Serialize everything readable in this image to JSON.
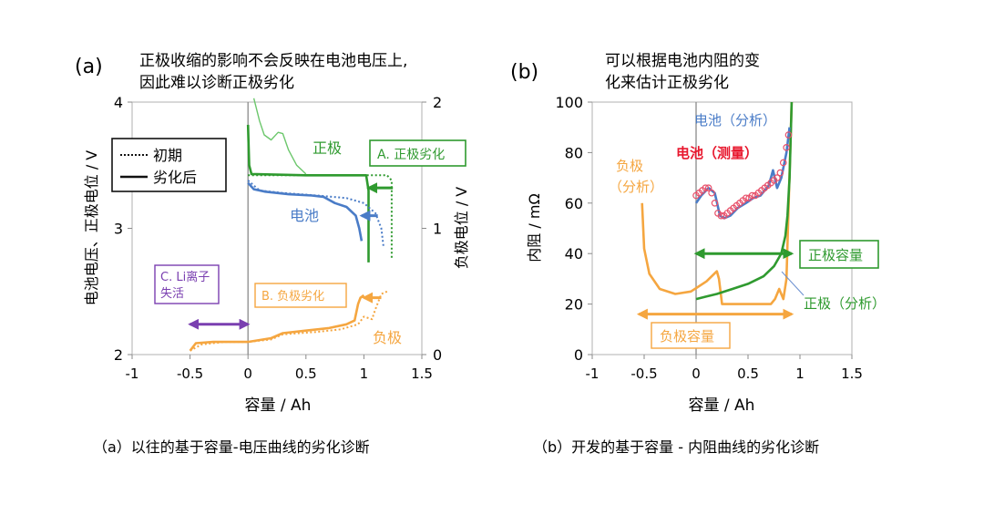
{
  "colors": {
    "cell": "#4a7cc7",
    "cell_measured": "#e8506a",
    "positive": "#2f9a2f",
    "positive_light": "#6cc76c",
    "negative": "#f5a640",
    "purple": "#7a3fb0",
    "axis": "#8a8a8a",
    "plot_bg": "#ffffff"
  },
  "panel_a": {
    "letter": "(a)",
    "note_line1": "正极收缩的影响不会反映在电池电压上,",
    "note_line2": "因此难以诊断正极劣化",
    "caption": "（a）以往的基于容量-电压曲线的劣化诊断",
    "legend": {
      "initial": "初期",
      "degraded": "劣化后"
    },
    "labels": {
      "positive": "正极",
      "cell": "电池",
      "negative": "负极",
      "box_A": "A. 正极劣化",
      "box_B": "B. 负极劣化",
      "box_C_line1": "C. Li离子",
      "box_C_line2": "失活"
    }
  },
  "panel_b": {
    "letter": "(b)",
    "note_line1": "可以根据电池内阻的变",
    "note_line2": "化来估计正极劣化",
    "caption": "（b）开发的基于容量 - 内阻曲线的劣化诊断",
    "labels": {
      "cell_analysis": "电池（分析）",
      "cell_measured": "电池（测量）",
      "negative_analysis_line1": "负极",
      "negative_analysis_line2": "（分析）",
      "positive_capacity": "正极容量",
      "positive_analysis": "正极（分析）",
      "negative_capacity": "负极容量"
    }
  },
  "chart_data": [
    {
      "type": "line",
      "xlabel": "容量 / Ah",
      "ylabel": "电池电压、正极电位 / V",
      "ylabel_right": "负极电位 / V",
      "xlim": [
        -1,
        1.5
      ],
      "ylim": [
        2,
        4
      ],
      "ylim_right": [
        0,
        2
      ],
      "x_ticks": [
        "-1",
        "-0.5",
        "0",
        "0.5",
        "1",
        "1.5"
      ],
      "y_ticks": [
        "2",
        "3",
        "4"
      ],
      "y_ticks_right": [
        "0",
        "1",
        "2"
      ],
      "grid": false,
      "legend_position": "top-left",
      "series": [
        {
          "name": "正极",
          "state": "初期",
          "color": "positive",
          "style": "dotted",
          "axis": "left",
          "points": [
            [
              0,
              3.42
            ],
            [
              0.5,
              3.42
            ],
            [
              1.0,
              3.42
            ],
            [
              1.1,
              3.42
            ],
            [
              1.2,
              3.42
            ],
            [
              1.24,
              3.38
            ],
            [
              1.24,
              3.2
            ],
            [
              1.24,
              2.75
            ]
          ]
        },
        {
          "name": "正极",
          "state": "劣化后",
          "color": "positive",
          "style": "solid",
          "axis": "left",
          "points": [
            [
              0,
              3.82
            ],
            [
              0.01,
              3.5
            ],
            [
              0.03,
              3.43
            ],
            [
              0.5,
              3.42
            ],
            [
              0.9,
              3.42
            ],
            [
              1.02,
              3.42
            ],
            [
              1.04,
              3.3
            ],
            [
              1.04,
              3.0
            ],
            [
              1.04,
              2.73
            ]
          ]
        },
        {
          "name": "正极",
          "state": "extension",
          "color": "positive_light",
          "style": "solid",
          "axis": "left",
          "points": [
            [
              0.05,
              4.03
            ],
            [
              0.1,
              3.85
            ],
            [
              0.14,
              3.74
            ],
            [
              0.2,
              3.7
            ],
            [
              0.26,
              3.76
            ],
            [
              0.3,
              3.75
            ],
            [
              0.35,
              3.62
            ],
            [
              0.42,
              3.5
            ],
            [
              0.5,
              3.43
            ]
          ]
        },
        {
          "name": "电池",
          "state": "初期",
          "color": "cell",
          "style": "dotted",
          "axis": "left",
          "points": [
            [
              0,
              3.38
            ],
            [
              0.1,
              3.3
            ],
            [
              0.3,
              3.28
            ],
            [
              0.6,
              3.26
            ],
            [
              0.85,
              3.24
            ],
            [
              1.0,
              3.2
            ],
            [
              1.1,
              3.12
            ],
            [
              1.15,
              3.0
            ],
            [
              1.17,
              2.85
            ]
          ]
        },
        {
          "name": "电池",
          "state": "劣化后",
          "color": "cell",
          "style": "solid",
          "axis": "left",
          "points": [
            [
              0,
              3.36
            ],
            [
              0.05,
              3.31
            ],
            [
              0.15,
              3.29
            ],
            [
              0.35,
              3.27
            ],
            [
              0.55,
              3.26
            ],
            [
              0.65,
              3.25
            ],
            [
              0.75,
              3.2
            ],
            [
              0.85,
              3.17
            ],
            [
              0.93,
              3.1
            ],
            [
              0.96,
              3.0
            ],
            [
              0.98,
              2.9
            ]
          ]
        },
        {
          "name": "负极",
          "state": "初期",
          "color": "negative",
          "style": "dotted",
          "axis": "right",
          "points": [
            [
              -0.5,
              0.03
            ],
            [
              -0.4,
              0.08
            ],
            [
              -0.2,
              0.1
            ],
            [
              0,
              0.1
            ],
            [
              0.2,
              0.12
            ],
            [
              0.3,
              0.16
            ],
            [
              0.6,
              0.18
            ],
            [
              0.8,
              0.2
            ],
            [
              0.95,
              0.24
            ],
            [
              1.0,
              0.3
            ],
            [
              1.07,
              0.28
            ],
            [
              1.1,
              0.36
            ],
            [
              1.15,
              0.48
            ],
            [
              1.2,
              0.5
            ]
          ]
        },
        {
          "name": "负极",
          "state": "劣化后",
          "color": "negative",
          "style": "solid",
          "axis": "right",
          "points": [
            [
              -0.5,
              0.03
            ],
            [
              -0.45,
              0.09
            ],
            [
              -0.3,
              0.1
            ],
            [
              0,
              0.1
            ],
            [
              0.2,
              0.13
            ],
            [
              0.3,
              0.17
            ],
            [
              0.5,
              0.19
            ],
            [
              0.7,
              0.21
            ],
            [
              0.85,
              0.24
            ],
            [
              0.92,
              0.27
            ],
            [
              0.95,
              0.4
            ],
            [
              0.97,
              0.45
            ],
            [
              1.0,
              0.47
            ]
          ]
        }
      ],
      "annotations": [
        {
          "type": "arrow",
          "color": "positive",
          "from": [
            1.25,
            3.32
          ],
          "to": [
            1.04,
            3.32
          ]
        },
        {
          "type": "arrow",
          "color": "cell",
          "from": [
            1.12,
            3.1
          ],
          "to": [
            0.98,
            3.1
          ]
        },
        {
          "type": "arrow",
          "color": "negative",
          "from": [
            1.15,
            0.45
          ],
          "to": [
            1.0,
            0.45
          ]
        },
        {
          "type": "double-arrow",
          "color": "purple",
          "from": [
            -0.5,
            0.24
          ],
          "to": [
            0,
            0.24
          ]
        }
      ]
    },
    {
      "type": "line",
      "xlabel": "容量 / Ah",
      "ylabel": "内阻 / mΩ",
      "xlim": [
        -1,
        1.5
      ],
      "ylim": [
        0,
        100
      ],
      "x_ticks": [
        "-1",
        "-0.5",
        "0",
        "0.5",
        "1",
        "1.5"
      ],
      "y_ticks": [
        "0",
        "20",
        "40",
        "60",
        "80",
        "100"
      ],
      "grid": false,
      "series": [
        {
          "name": "负极（分析）",
          "color": "negative",
          "style": "solid",
          "points": [
            [
              -0.52,
              60
            ],
            [
              -0.5,
              42
            ],
            [
              -0.45,
              32
            ],
            [
              -0.35,
              26
            ],
            [
              -0.2,
              24
            ],
            [
              -0.05,
              25
            ],
            [
              0.1,
              29
            ],
            [
              0.2,
              33
            ],
            [
              0.22,
              30
            ],
            [
              0.25,
              20
            ],
            [
              0.35,
              20
            ],
            [
              0.55,
              20
            ],
            [
              0.72,
              20
            ],
            [
              0.76,
              22
            ],
            [
              0.8,
              26
            ],
            [
              0.84,
              22
            ],
            [
              0.87,
              30
            ],
            [
              0.92,
              100
            ]
          ]
        },
        {
          "name": "正极（分析）",
          "color": "positive",
          "style": "solid",
          "points": [
            [
              0,
              22
            ],
            [
              0.1,
              23
            ],
            [
              0.2,
              24
            ],
            [
              0.35,
              26
            ],
            [
              0.5,
              28
            ],
            [
              0.65,
              31
            ],
            [
              0.75,
              35
            ],
            [
              0.82,
              40
            ],
            [
              0.86,
              47
            ],
            [
              0.88,
              55
            ],
            [
              0.9,
              70
            ],
            [
              0.92,
              100
            ]
          ]
        },
        {
          "name": "电池（分析）",
          "color": "cell",
          "style": "solid",
          "points": [
            [
              0,
              60
            ],
            [
              0.05,
              63
            ],
            [
              0.12,
              66
            ],
            [
              0.18,
              64
            ],
            [
              0.23,
              55
            ],
            [
              0.27,
              54
            ],
            [
              0.33,
              55
            ],
            [
              0.4,
              58
            ],
            [
              0.48,
              60
            ],
            [
              0.55,
              62
            ],
            [
              0.62,
              63
            ],
            [
              0.7,
              67
            ],
            [
              0.74,
              73
            ],
            [
              0.78,
              66
            ],
            [
              0.82,
              70
            ],
            [
              0.87,
              80
            ],
            [
              0.9,
              90
            ]
          ]
        },
        {
          "name": "电池（测量）",
          "color": "cell_measured",
          "style": "markers",
          "points": [
            [
              0,
              63
            ],
            [
              0.03,
              64
            ],
            [
              0.06,
              65
            ],
            [
              0.09,
              66
            ],
            [
              0.12,
              66
            ],
            [
              0.15,
              64
            ],
            [
              0.18,
              60
            ],
            [
              0.21,
              56
            ],
            [
              0.24,
              55
            ],
            [
              0.27,
              55
            ],
            [
              0.3,
              56
            ],
            [
              0.33,
              57
            ],
            [
              0.36,
              58
            ],
            [
              0.39,
              59
            ],
            [
              0.42,
              60
            ],
            [
              0.45,
              61
            ],
            [
              0.48,
              62
            ],
            [
              0.51,
              62
            ],
            [
              0.54,
              63
            ],
            [
              0.57,
              63
            ],
            [
              0.6,
              64
            ],
            [
              0.63,
              65
            ],
            [
              0.66,
              66
            ],
            [
              0.69,
              67
            ],
            [
              0.72,
              68
            ],
            [
              0.75,
              69
            ],
            [
              0.78,
              70
            ],
            [
              0.81,
              72
            ],
            [
              0.84,
              76
            ],
            [
              0.87,
              82
            ],
            [
              0.89,
              87
            ]
          ]
        }
      ],
      "annotations": [
        {
          "type": "double-arrow",
          "color": "positive",
          "from": [
            0,
            40
          ],
          "to": [
            0.92,
            40
          ]
        },
        {
          "type": "double-arrow",
          "color": "negative",
          "from": [
            -0.55,
            16
          ],
          "to": [
            0.92,
            16
          ]
        }
      ]
    }
  ]
}
